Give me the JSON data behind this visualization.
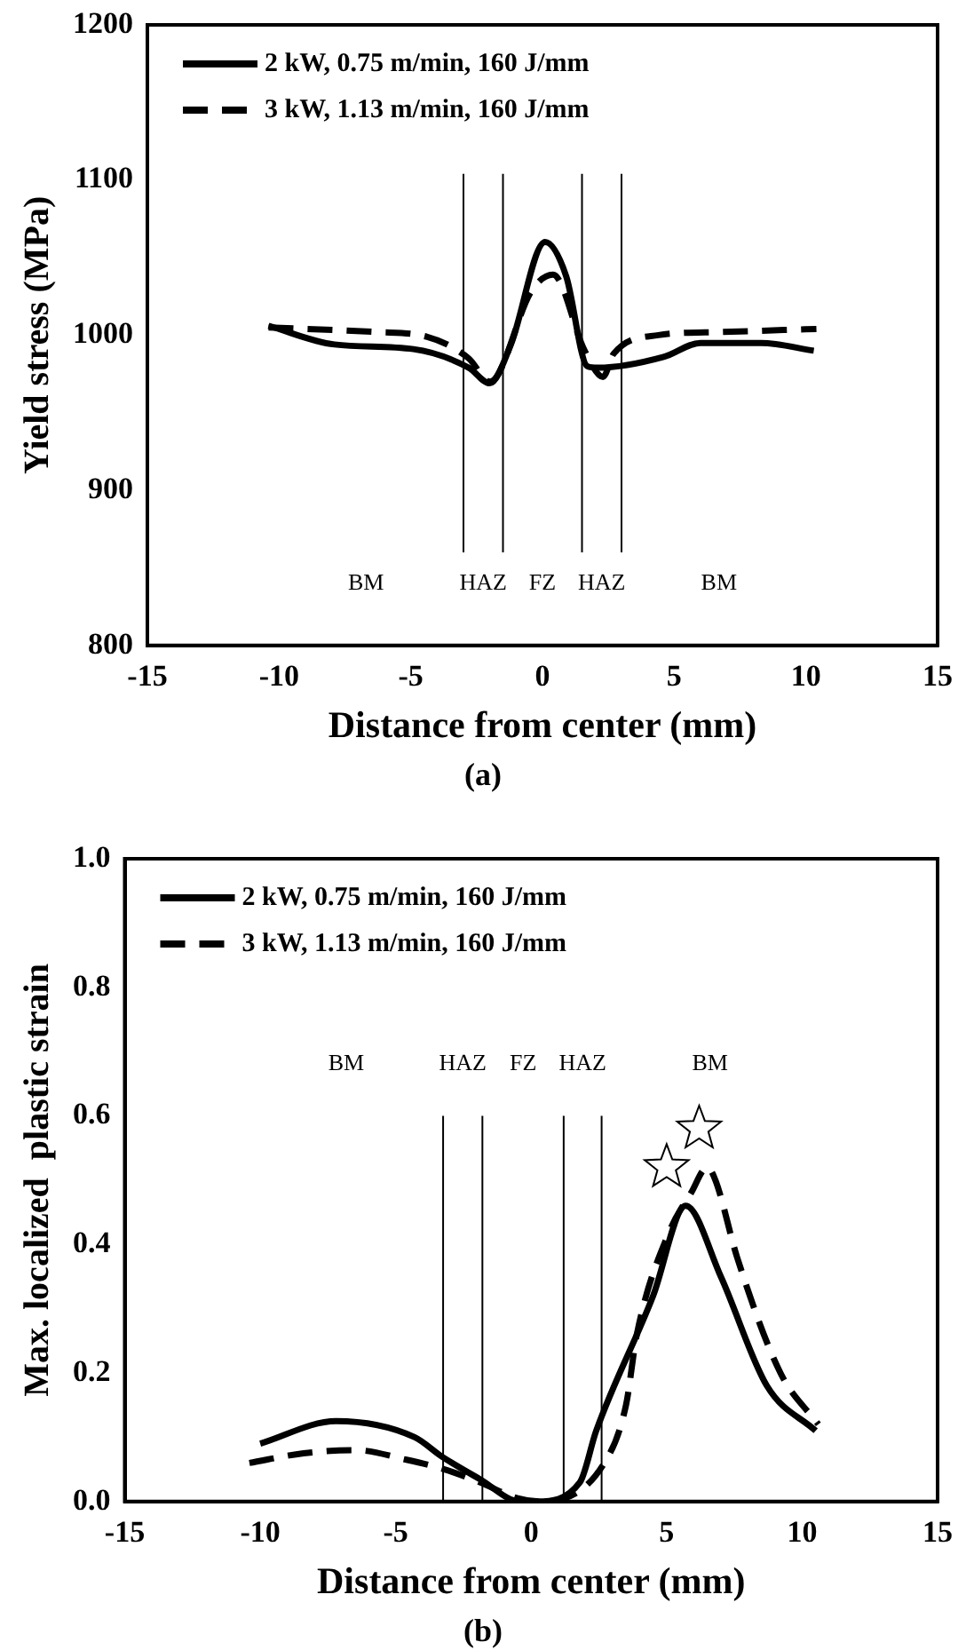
{
  "chart_data": [
    {
      "type": "line",
      "xlabel": "Distance from center (mm)",
      "ylabel": "Yield stress (MPa)",
      "xlim": [
        -15,
        15
      ],
      "xticks": [
        -15,
        -10,
        -5,
        0,
        5,
        10,
        15
      ],
      "ylim": [
        800,
        1200
      ],
      "yticks": [
        800,
        900,
        1000,
        1100,
        1200
      ],
      "grid": false,
      "legend": "top left",
      "marker": "none",
      "series": [
        {
          "name": "2 kW, 0.75 m/min, 160 J/mm",
          "color": "#000000",
          "line_style": "solid",
          "x": [
            -10.4,
            -7.9,
            -4.9,
            -2.8,
            -2.0,
            -1.2,
            0.1,
            0.9,
            1.7,
            2.1,
            4.6,
            6.0,
            8.3,
            10.3
          ],
          "values": [
            1006,
            994,
            991,
            979,
            969,
            994,
            1060,
            1038,
            980,
            979,
            986,
            995,
            995,
            990
          ]
        },
        {
          "name": "3 kW, 1.13 m/min, 160 J/mm",
          "color": "#000000",
          "line_style": "dashed",
          "x": [
            -10.4,
            -6.3,
            -4.4,
            -2.8,
            -2.0,
            -0.4,
            0.4,
            1.6,
            2.3,
            2.7,
            4.4,
            6.7,
            10.4
          ],
          "values": [
            1005,
            1002,
            999,
            985,
            970,
            1029,
            1039,
            990,
            973,
            988,
            1000,
            1002,
            1004
          ]
        }
      ],
      "ref_lines": [
        {
          "axis": "x",
          "value": -3,
          "color": "#000000"
        },
        {
          "axis": "x",
          "value": -1.5,
          "color": "#000000"
        },
        {
          "axis": "x",
          "value": 1.5,
          "color": "#000000"
        },
        {
          "axis": "x",
          "value": 3,
          "color": "#000000"
        }
      ],
      "annotations": [
        "BM",
        "HAZ",
        "FZ",
        "HAZ",
        "BM",
        "(a)"
      ]
    },
    {
      "type": "line",
      "xlabel": "Distance from center (mm)",
      "ylabel": "Max. localized  plastic strain",
      "xlim": [
        -15,
        15
      ],
      "xticks": [
        -15,
        -10,
        -5,
        0,
        5,
        10,
        15
      ],
      "ylim": [
        0,
        1
      ],
      "yticks": [
        {
          "value": 0,
          "label": "0.0"
        },
        0.2,
        0.4,
        0.6,
        0.8,
        {
          "value": 1,
          "label": "1.0"
        }
      ],
      "grid": false,
      "legend": "top left",
      "marker": "none",
      "series": [
        {
          "name": "2 kW, 0.75 m/min, 160 J/mm",
          "color": "#000000",
          "line_style": "solid",
          "x": [
            -10.0,
            -7.2,
            -4.3,
            -3.3,
            -1.9,
            -0.4,
            0.2,
            1.8,
            2.4,
            4.5,
            5.7,
            7.0,
            8.7,
            10.5
          ],
          "values": [
            0.09,
            0.125,
            0.1,
            0.07,
            0.035,
            0.0,
            0.0,
            0.03,
            0.11,
            0.32,
            0.46,
            0.35,
            0.18,
            0.11
          ]
        },
        {
          "name": "3 kW, 1.13 m/min, 160 J/mm",
          "color": "#000000",
          "line_style": "dashed",
          "x": [
            -10.4,
            -8.4,
            -6.5,
            -4.6,
            -3.2,
            -1.9,
            -0.5,
            0.3,
            2.7,
            3.5,
            3.9,
            5.1,
            5.9,
            6.5,
            6.8,
            7.6,
            9.2,
            10.6
          ],
          "values": [
            0.06,
            0.075,
            0.08,
            0.065,
            0.05,
            0.03,
            0.005,
            0.0,
            0.06,
            0.15,
            0.26,
            0.42,
            0.48,
            0.52,
            0.5,
            0.38,
            0.2,
            0.12
          ]
        },
        {
          "type": "scatter",
          "marker": "star",
          "color": "#000000",
          "x": [
            5.0,
            6.2
          ],
          "values": [
            0.52,
            0.58
          ]
        }
      ],
      "ref_lines": [
        {
          "axis": "x",
          "value": -3.25,
          "color": "#000000"
        },
        {
          "axis": "x",
          "value": -1.8,
          "color": "#000000"
        },
        {
          "axis": "x",
          "value": 1.2,
          "color": "#000000"
        },
        {
          "axis": "x",
          "value": 2.6,
          "color": "#000000"
        }
      ],
      "annotations": [
        "BM",
        "HAZ",
        "FZ",
        "HAZ",
        "BM",
        "(b)"
      ]
    }
  ]
}
